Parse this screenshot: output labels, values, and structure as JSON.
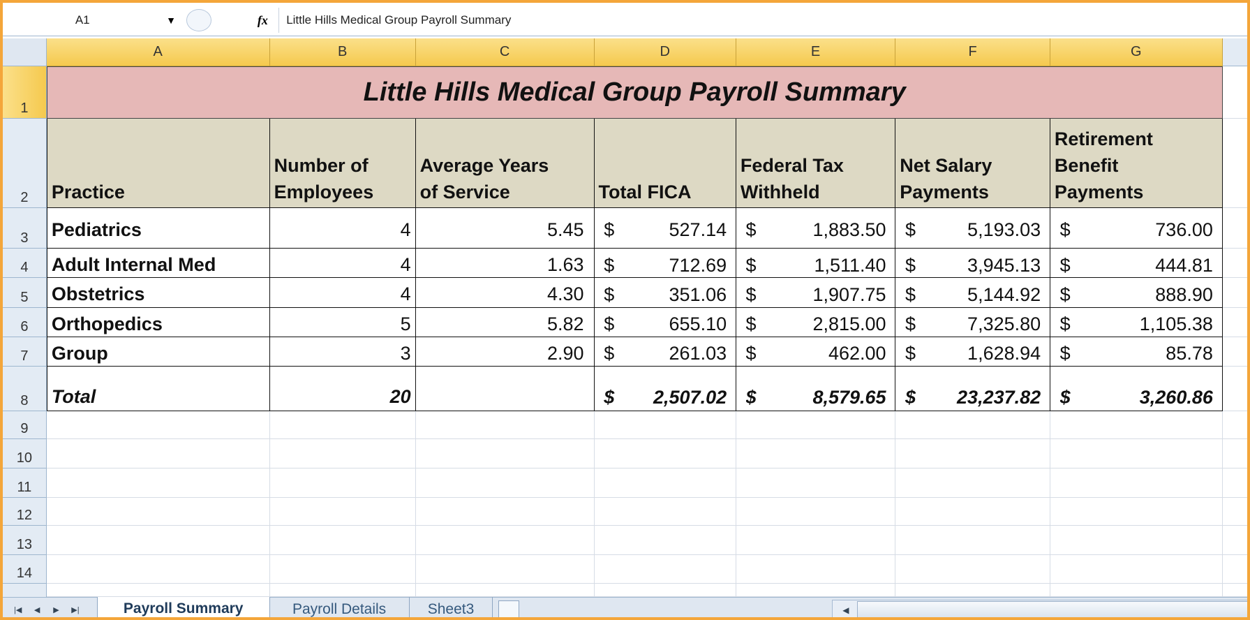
{
  "name_box": "A1",
  "formula_bar": "Little Hills Medical Group Payroll Summary",
  "column_headers": [
    "A",
    "B",
    "C",
    "D",
    "E",
    "F",
    "G"
  ],
  "row_headers": [
    "1",
    "2",
    "3",
    "4",
    "5",
    "6",
    "7",
    "8",
    "9",
    "10",
    "11",
    "12",
    "13",
    "14"
  ],
  "table": {
    "title": "Little Hills Medical Group Payroll Summary",
    "header": [
      "Practice",
      "Number of\nEmployees",
      "Average Years\nof Service",
      "Total FICA",
      "Federal Tax\nWithheld",
      "Net Salary\nPayments",
      "Retirement\nBenefit\nPayments"
    ],
    "currency_symbol": "$",
    "rows": [
      {
        "practice": "Pediatrics",
        "employees": "4",
        "years": "5.45",
        "amounts": [
          "527.14",
          "1,883.50",
          "5,193.03",
          "736.00"
        ]
      },
      {
        "practice": "Adult Internal Med",
        "employees": "4",
        "years": "1.63",
        "amounts": [
          "712.69",
          "1,511.40",
          "3,945.13",
          "444.81"
        ]
      },
      {
        "practice": "Obstetrics",
        "employees": "4",
        "years": "4.30",
        "amounts": [
          "351.06",
          "1,907.75",
          "5,144.92",
          "888.90"
        ]
      },
      {
        "practice": "Orthopedics",
        "employees": "5",
        "years": "5.82",
        "amounts": [
          "655.10",
          "2,815.00",
          "7,325.80",
          "1,105.38"
        ]
      },
      {
        "practice": "Group",
        "employees": "3",
        "years": "2.90",
        "amounts": [
          "261.03",
          "462.00",
          "1,628.94",
          "85.78"
        ]
      }
    ],
    "total": {
      "label": "Total",
      "employees": "20",
      "amounts": [
        "2,507.02",
        "8,579.65",
        "23,237.82",
        "3,260.86"
      ]
    }
  },
  "sheet_tabs": [
    "Payroll Summary",
    "Payroll Details",
    "Sheet3"
  ]
}
